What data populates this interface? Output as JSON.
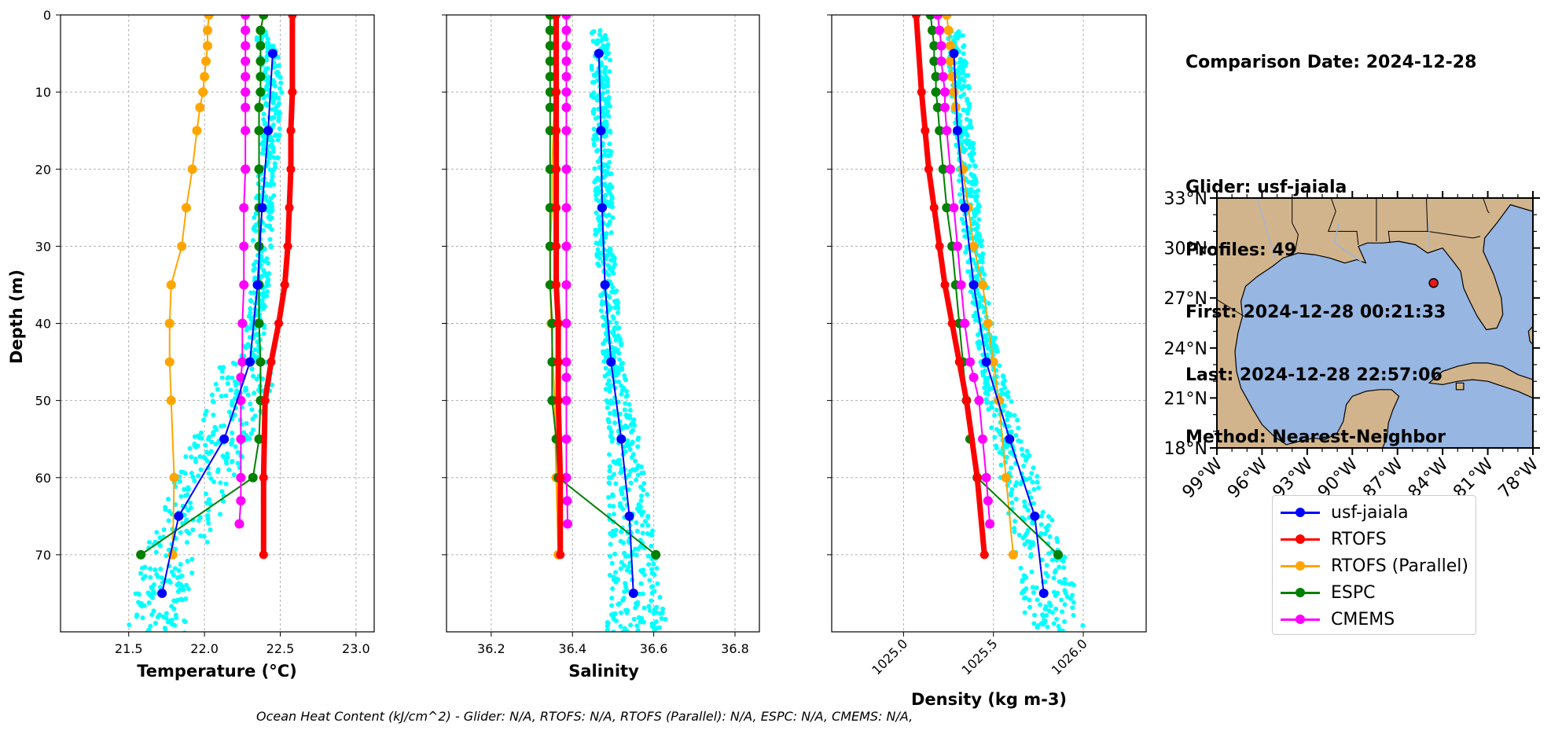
{
  "info": {
    "comparison_date": "Comparison Date: 2024-12-28",
    "glider": "Glider: usf-jaiala",
    "profiles": "Profiles: 49",
    "first": "First: 2024-12-28 00:21:33",
    "last": "Last: 2024-12-28 22:57:06",
    "method": "Method: Nearest-Neighbor"
  },
  "footer": "Ocean Heat Content (kJ/cm^2) - Glider: N/A,  RTOFS: N/A,  RTOFS (Parallel): N/A,  ESPC: N/A,  CMEMS: N/A,",
  "colors": {
    "glider": "#0000ff",
    "glider_scatter": "#00ffff",
    "rtofs": "#ff0000",
    "rtofs_parallel": "#ffa500",
    "espc": "#008000",
    "cmems": "#ff00ff",
    "land": "#d2b48c",
    "ocean": "#97b6e1",
    "marker": "#e41a1c"
  },
  "legend": {
    "items": [
      {
        "label": "usf-jaiala",
        "color": "#0000ff"
      },
      {
        "label": "RTOFS",
        "color": "#ff0000"
      },
      {
        "label": "RTOFS (Parallel)",
        "color": "#ffa500"
      },
      {
        "label": "ESPC",
        "color": "#008000"
      },
      {
        "label": "CMEMS",
        "color": "#ff00ff"
      }
    ]
  },
  "map": {
    "lon_range": [
      -99,
      -78
    ],
    "lat_range": [
      18,
      33
    ],
    "xticks": [
      "99°W",
      "96°W",
      "93°W",
      "90°W",
      "87°W",
      "84°W",
      "81°W",
      "78°W"
    ],
    "yticks": [
      "33°N",
      "30°N",
      "27°N",
      "24°N",
      "21°N",
      "18°N"
    ],
    "marker": {
      "lon": -84.6,
      "lat": 27.9
    }
  },
  "chart_data": [
    {
      "type": "line",
      "xlabel": "Temperature (°C)",
      "ylabel": "Depth (m)",
      "xlim": [
        21.05,
        23.12
      ],
      "ylim": [
        80,
        0
      ],
      "xticks": [
        "21.5",
        "22.0",
        "22.5",
        "23.0"
      ],
      "yticks": [
        "0",
        "10",
        "20",
        "30",
        "40",
        "50",
        "60",
        "70"
      ],
      "grid": true,
      "scatter": {
        "name": "usf-jaiala (all)",
        "x_center": [
          22.4,
          22.45,
          22.45,
          22.4,
          22.38,
          22.36,
          22.3,
          22.2,
          22.05,
          21.9,
          21.75,
          21.68
        ],
        "depth": [
          3,
          8,
          15,
          22,
          30,
          38,
          45,
          52,
          58,
          65,
          72,
          80
        ]
      },
      "series": [
        {
          "name": "usf-jaiala",
          "x": [
            22.45,
            22.42,
            22.38,
            22.35,
            22.3,
            22.13,
            21.83,
            21.72
          ],
          "depth": [
            5,
            15,
            25,
            35,
            45,
            55,
            65,
            75
          ]
        },
        {
          "name": "RTOFS",
          "x": [
            22.58,
            22.58,
            22.57,
            22.57,
            22.56,
            22.55,
            22.53,
            22.49,
            22.44,
            22.4,
            22.39,
            22.39
          ],
          "depth": [
            0,
            10,
            15,
            20,
            25,
            30,
            35,
            40,
            45,
            50,
            60,
            70
          ]
        },
        {
          "name": "RTOFS (Parallel)",
          "x": [
            22.03,
            22.02,
            22.02,
            22.01,
            22.0,
            21.99,
            21.97,
            21.95,
            21.92,
            21.88,
            21.85,
            21.78,
            21.77,
            21.77,
            21.78,
            21.8,
            21.79
          ],
          "depth": [
            0,
            2,
            4,
            6,
            8,
            10,
            12,
            15,
            20,
            25,
            30,
            35,
            40,
            45,
            50,
            60,
            70
          ]
        },
        {
          "name": "ESPC",
          "x": [
            22.39,
            22.37,
            22.37,
            22.37,
            22.37,
            22.37,
            22.36,
            22.36,
            22.36,
            22.36,
            22.36,
            22.36,
            22.36,
            22.37,
            22.37,
            22.36,
            22.32,
            21.58
          ],
          "depth": [
            0,
            2,
            4,
            6,
            8,
            10,
            12,
            15,
            20,
            25,
            30,
            35,
            40,
            45,
            50,
            55,
            60,
            70
          ]
        },
        {
          "name": "CMEMS",
          "x": [
            22.27,
            22.27,
            22.27,
            22.27,
            22.27,
            22.27,
            22.27,
            22.27,
            22.27,
            22.26,
            22.26,
            22.26,
            22.25,
            22.25,
            22.24,
            22.24,
            22.24,
            22.24,
            22.24,
            22.23
          ],
          "depth": [
            0,
            2,
            4,
            6,
            8,
            10,
            12,
            15,
            20,
            25,
            30,
            35,
            40,
            45,
            47,
            50,
            55,
            60,
            63,
            66
          ]
        }
      ]
    },
    {
      "type": "line",
      "xlabel": "Salinity",
      "xlim": [
        36.09,
        36.86
      ],
      "ylim": [
        80,
        0
      ],
      "xticks": [
        "36.2",
        "36.4",
        "36.6",
        "36.8"
      ],
      "yticks": [
        "0",
        "10",
        "20",
        "30",
        "40",
        "50",
        "60",
        "70"
      ],
      "grid": true,
      "scatter": {
        "name": "usf-jaiala (all)",
        "x_center": [
          36.47,
          36.47,
          36.47,
          36.475,
          36.48,
          36.49,
          36.5,
          36.52,
          36.53,
          36.54,
          36.55,
          36.56
        ],
        "depth": [
          3,
          8,
          15,
          22,
          30,
          38,
          45,
          52,
          58,
          65,
          72,
          80
        ]
      },
      "series": [
        {
          "name": "usf-jaiala",
          "x": [
            36.465,
            36.47,
            36.473,
            36.48,
            36.495,
            36.52,
            36.54,
            36.55
          ],
          "depth": [
            5,
            15,
            25,
            35,
            45,
            55,
            65,
            75
          ]
        },
        {
          "name": "RTOFS",
          "x": [
            36.36,
            36.36,
            36.36,
            36.36,
            36.36,
            36.36,
            36.36,
            36.365,
            36.365,
            36.365,
            36.37,
            36.37
          ],
          "depth": [
            0,
            10,
            15,
            20,
            25,
            30,
            35,
            40,
            45,
            50,
            60,
            70
          ]
        },
        {
          "name": "RTOFS (Parallel)",
          "x": [
            36.355,
            36.355,
            36.355,
            36.355,
            36.355,
            36.355,
            36.355,
            36.353,
            36.35,
            36.35,
            36.345,
            36.345,
            36.348,
            36.352,
            36.356,
            36.36,
            36.365
          ],
          "depth": [
            0,
            2,
            4,
            6,
            8,
            10,
            12,
            15,
            20,
            25,
            30,
            35,
            40,
            45,
            50,
            60,
            70
          ]
        },
        {
          "name": "ESPC",
          "x": [
            36.345,
            36.345,
            36.345,
            36.345,
            36.345,
            36.345,
            36.345,
            36.345,
            36.345,
            36.345,
            36.345,
            36.345,
            36.35,
            36.35,
            36.35,
            36.36,
            36.365,
            36.605
          ],
          "depth": [
            0,
            2,
            4,
            6,
            8,
            10,
            12,
            15,
            20,
            25,
            30,
            35,
            40,
            45,
            50,
            55,
            60,
            70
          ]
        },
        {
          "name": "CMEMS",
          "x": [
            36.385,
            36.385,
            36.385,
            36.385,
            36.385,
            36.385,
            36.385,
            36.385,
            36.385,
            36.385,
            36.385,
            36.385,
            36.385,
            36.385,
            36.385,
            36.385,
            36.385,
            36.385,
            36.387,
            36.388
          ],
          "depth": [
            0,
            2,
            4,
            6,
            8,
            10,
            12,
            15,
            20,
            25,
            30,
            35,
            40,
            45,
            47,
            50,
            55,
            60,
            63,
            66
          ]
        }
      ]
    },
    {
      "type": "line",
      "xlabel": "Density (kg m-3)",
      "xlim": [
        1024.6,
        1026.35
      ],
      "ylim": [
        80,
        0
      ],
      "xticks": [
        "1025.0",
        "1025.5",
        "1026.0"
      ],
      "yticks": [
        "0",
        "10",
        "20",
        "30",
        "40",
        "50",
        "60",
        "70"
      ],
      "grid": true,
      "scatter": {
        "name": "usf-jaiala (all)",
        "x_center": [
          1025.29,
          1025.31,
          1025.33,
          1025.36,
          1025.39,
          1025.43,
          1025.48,
          1025.55,
          1025.62,
          1025.7,
          1025.78,
          1025.86
        ],
        "depth": [
          3,
          8,
          15,
          22,
          30,
          38,
          45,
          52,
          58,
          65,
          72,
          80
        ]
      },
      "series": [
        {
          "name": "usf-jaiala",
          "x": [
            1025.28,
            1025.3,
            1025.34,
            1025.39,
            1025.46,
            1025.59,
            1025.73,
            1025.78
          ],
          "depth": [
            5,
            15,
            25,
            35,
            45,
            55,
            65,
            75
          ]
        },
        {
          "name": "RTOFS",
          "x": [
            1025.07,
            1025.1,
            1025.12,
            1025.14,
            1025.17,
            1025.2,
            1025.23,
            1025.27,
            1025.31,
            1025.35,
            1025.41,
            1025.45
          ],
          "depth": [
            0,
            10,
            15,
            20,
            25,
            30,
            35,
            40,
            45,
            50,
            60,
            70
          ]
        },
        {
          "name": "RTOFS (Parallel)",
          "x": [
            1025.24,
            1025.25,
            1025.26,
            1025.26,
            1025.27,
            1025.28,
            1025.29,
            1025.3,
            1025.33,
            1025.36,
            1025.39,
            1025.44,
            1025.47,
            1025.5,
            1025.53,
            1025.57,
            1025.61
          ],
          "depth": [
            0,
            2,
            4,
            6,
            8,
            10,
            12,
            15,
            20,
            25,
            30,
            35,
            40,
            45,
            50,
            60,
            70
          ]
        },
        {
          "name": "ESPC",
          "x": [
            1025.15,
            1025.16,
            1025.17,
            1025.17,
            1025.18,
            1025.18,
            1025.19,
            1025.2,
            1025.22,
            1025.24,
            1025.27,
            1025.29,
            1025.31,
            1025.33,
            1025.35,
            1025.37,
            1025.41,
            1025.86
          ],
          "depth": [
            0,
            2,
            4,
            6,
            8,
            10,
            12,
            15,
            20,
            25,
            30,
            35,
            40,
            45,
            50,
            55,
            60,
            70
          ]
        },
        {
          "name": "CMEMS",
          "x": [
            1025.19,
            1025.2,
            1025.21,
            1025.21,
            1025.22,
            1025.23,
            1025.23,
            1025.24,
            1025.26,
            1025.28,
            1025.3,
            1025.32,
            1025.34,
            1025.37,
            1025.39,
            1025.42,
            1025.44,
            1025.46,
            1025.47,
            1025.48
          ],
          "depth": [
            0,
            2,
            4,
            6,
            8,
            10,
            12,
            15,
            20,
            25,
            30,
            35,
            40,
            45,
            47,
            50,
            55,
            60,
            63,
            66
          ]
        }
      ]
    }
  ]
}
